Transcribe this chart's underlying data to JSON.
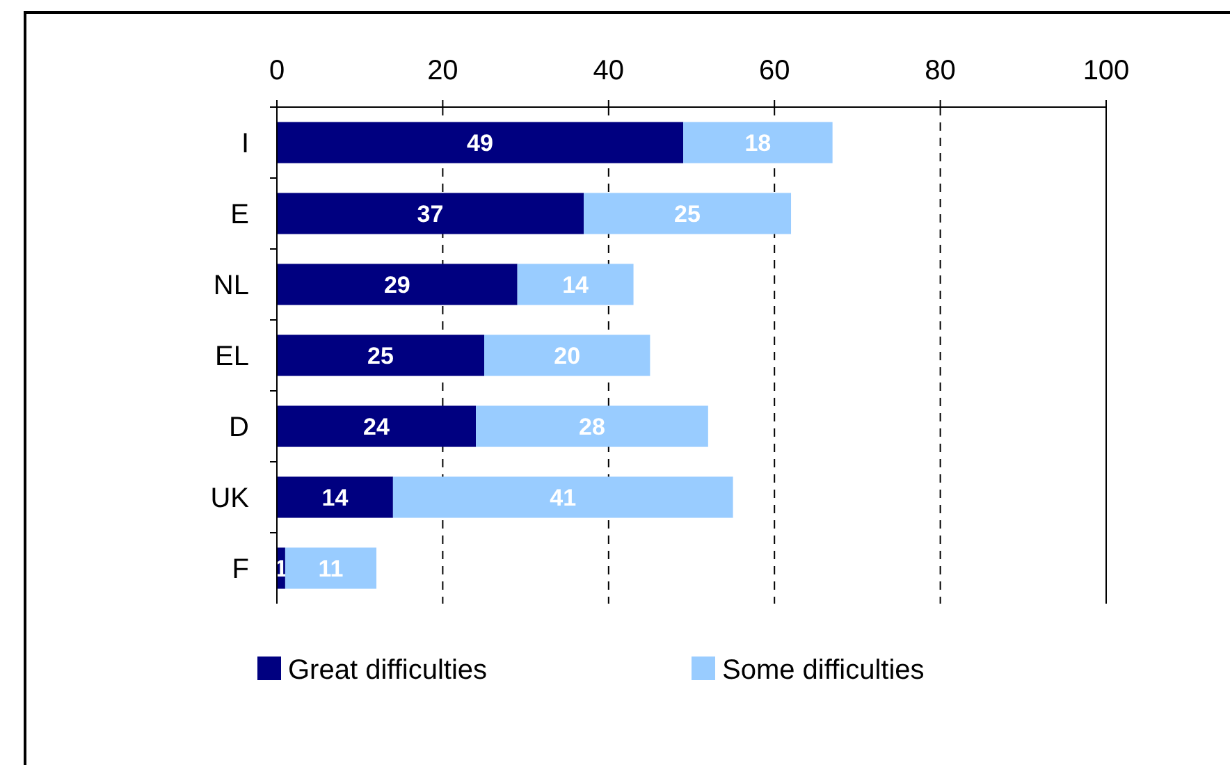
{
  "chart_data": {
    "type": "bar",
    "orientation": "horizontal",
    "stacked": true,
    "categories": [
      "I",
      "E",
      "NL",
      "EL",
      "D",
      "UK",
      "F"
    ],
    "series": [
      {
        "name": "Great difficulties",
        "color": "#000080",
        "values": [
          49,
          37,
          29,
          25,
          24,
          14,
          1
        ]
      },
      {
        "name": "Some difficulties",
        "color": "#99ccff",
        "values": [
          18,
          25,
          14,
          20,
          28,
          41,
          11
        ]
      }
    ],
    "xlim": [
      0,
      100
    ],
    "xticks": [
      0,
      20,
      40,
      60,
      80,
      100
    ],
    "grid": "x",
    "legend": "bottom",
    "data_labels": true
  }
}
